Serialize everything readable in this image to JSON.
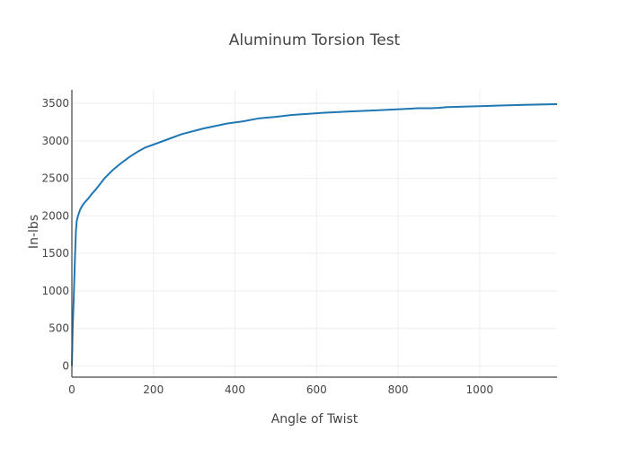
{
  "chart_data": {
    "type": "line",
    "title": "Aluminum Torsion Test",
    "xlabel": "Angle of Twist",
    "ylabel": "In-lbs",
    "xlim": [
      0,
      1190
    ],
    "ylim": [
      -150,
      3680
    ],
    "xticks": [
      0,
      200,
      400,
      600,
      800,
      1000
    ],
    "yticks": [
      0,
      500,
      1000,
      1500,
      2000,
      2500,
      3000,
      3500
    ],
    "grid": true,
    "series": [
      {
        "name": "",
        "color": "#1f77b4",
        "x": [
          0,
          2,
          5,
          8,
          10,
          12,
          15,
          20,
          25,
          30,
          40,
          50,
          60,
          80,
          100,
          120,
          140,
          160,
          180,
          200,
          230,
          270,
          320,
          380,
          420,
          460,
          500,
          540,
          580,
          620,
          660,
          700,
          740,
          780,
          820,
          850,
          880,
          900,
          920,
          960,
          1000,
          1050,
          1100,
          1150,
          1190
        ],
        "y": [
          0,
          500,
          1000,
          1500,
          1800,
          1930,
          2000,
          2080,
          2130,
          2170,
          2230,
          2300,
          2360,
          2500,
          2610,
          2700,
          2780,
          2850,
          2910,
          2950,
          3010,
          3090,
          3160,
          3230,
          3260,
          3300,
          3320,
          3345,
          3360,
          3375,
          3385,
          3395,
          3405,
          3415,
          3425,
          3435,
          3435,
          3440,
          3450,
          3455,
          3462,
          3470,
          3478,
          3484,
          3488
        ]
      }
    ]
  }
}
